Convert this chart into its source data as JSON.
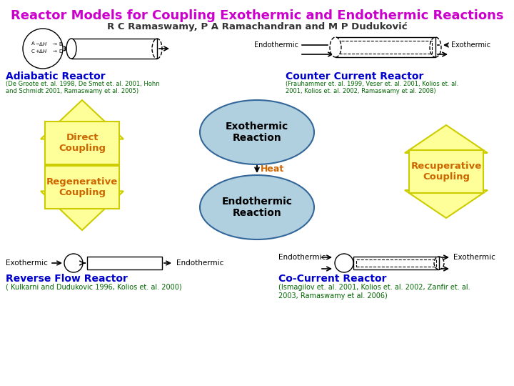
{
  "title": "Reactor Models for Coupling Exothermic and Endothermic Reactions",
  "subtitle": "R C Ramaswamy, P A Ramachandran and M P Duduković",
  "title_color": "#cc00cc",
  "subtitle_color": "#333333",
  "bg_color": "#ffffff",
  "section_label_color": "#0000cc",
  "ref_color": "#006600",
  "heat_color": "#cc6600",
  "box_yellow_fill": "#ffff99",
  "box_yellow_edge": "#cccc00",
  "arrow_yellow_fill": "#ffff99",
  "arrow_yellow_edge": "#cccc00",
  "ellipse_fill": "#b0d0e0",
  "ellipse_edge": "#336699",
  "coupling_text_color": "#cc6600",
  "direct_coupling_text": "Direct\nCoupling",
  "regenerative_coupling_text": "Regenerative\nCoupling",
  "recuperative_coupling_text": "Recuperative\nCoupling",
  "exothermic_reaction_text": "Exothermic\nReaction",
  "endothermic_reaction_text": "Endothermic\nReaction",
  "heat_label": "Heat",
  "adiabatic_label": "Adiabatic Reactor",
  "adiabatic_ref": "(De Groote et. al. 1998, De Smet et. al. 2001, Hohn\nand Schmidt 2001, Ramaswamy et al. 2005)",
  "counter_label": "Counter Current Reactor",
  "counter_ref": "(Frauhammer et. al. 1999, Veser et. al. 2001, Kolios et. al.\n2001, Kolios et. al. 2002, Ramaswamy et al. 2008)",
  "reverse_label": "Reverse Flow Reactor",
  "reverse_ref": "( Kulkarni and Dudukovic 1996, Kolios et. al. 2000)",
  "cocurrent_label": "Co-Current Reactor",
  "cocurrent_ref": "(Ismagilov et. al. 2001, Kolios et. al. 2002, Zanfir et. al.\n2003, Ramaswamy et al. 2006)"
}
